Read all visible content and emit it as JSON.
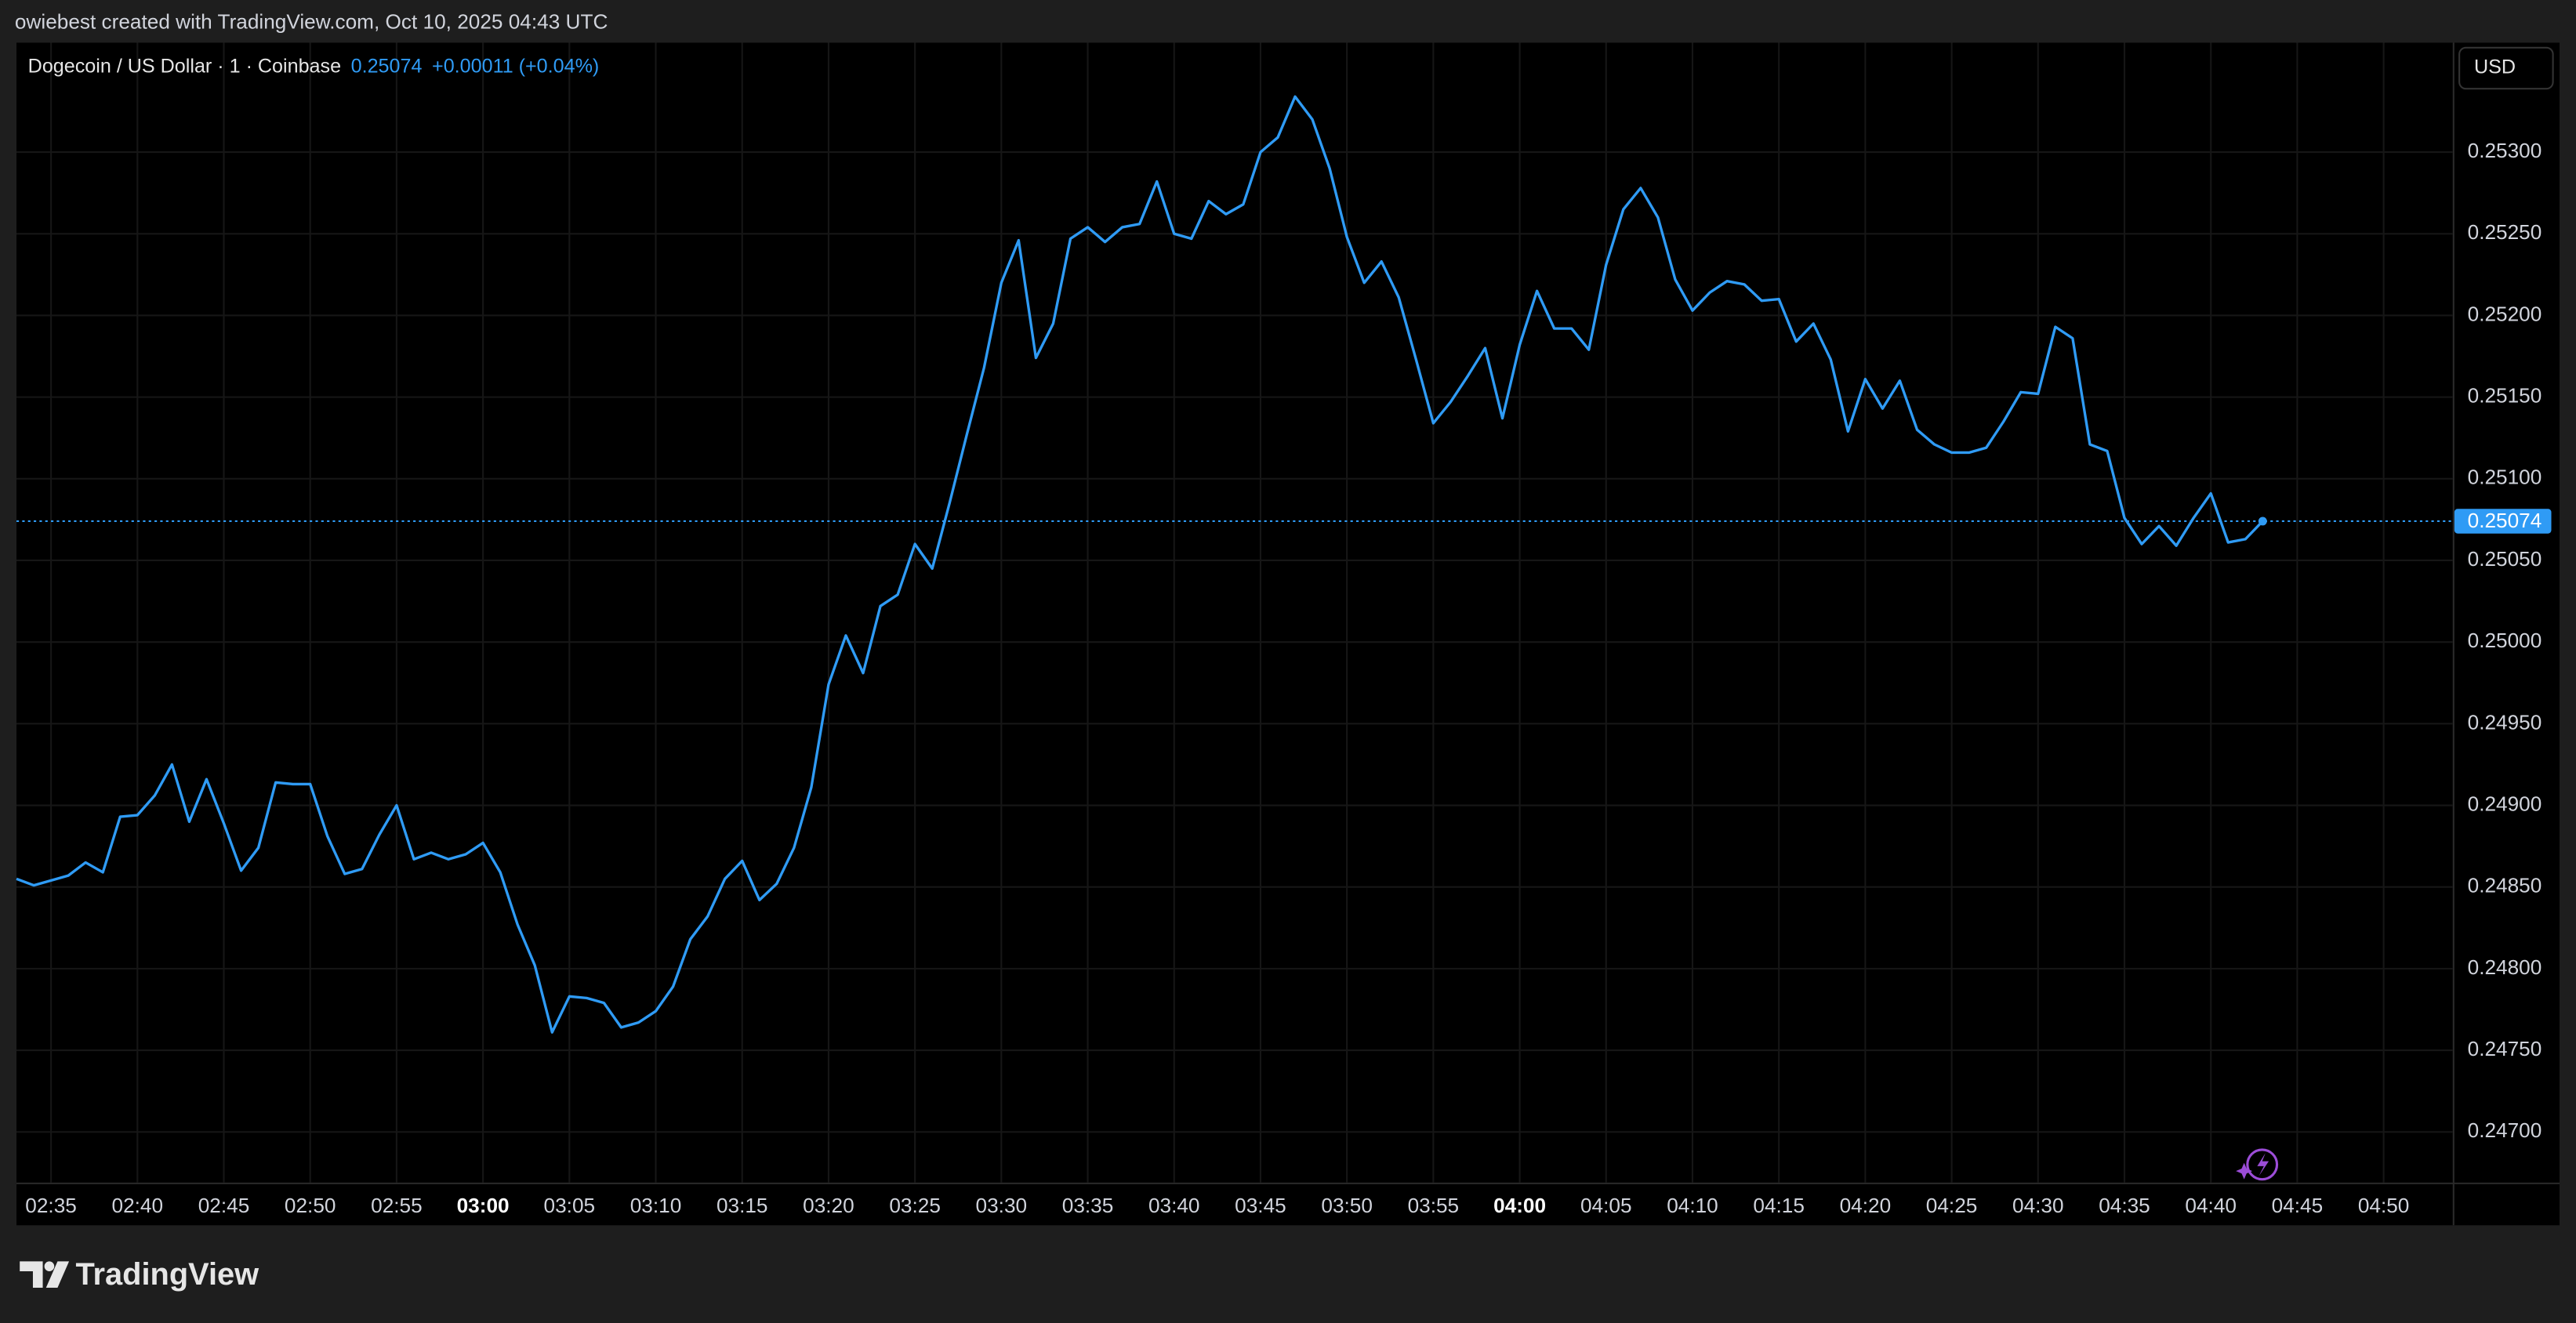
{
  "attribution": "owiebest created with TradingView.com, Oct 10, 2025 04:43 UTC",
  "brand": "TradingView",
  "chart_data": {
    "type": "line",
    "title": "Dogecoin / US Dollar · 1 · Coinbase",
    "last": 0.25074,
    "change": "+0.00011 (+0.04%)",
    "currency": "USD",
    "color": "#2f9bf5",
    "grid": true,
    "x": [
      "02:33",
      "02:34",
      "02:35",
      "02:36",
      "02:37",
      "02:38",
      "02:39",
      "02:40",
      "02:41",
      "02:42",
      "02:43",
      "02:44",
      "02:45",
      "02:46",
      "02:47",
      "02:48",
      "02:49",
      "02:50",
      "02:51",
      "02:52",
      "02:53",
      "02:54",
      "02:55",
      "02:56",
      "02:57",
      "02:58",
      "02:59",
      "03:00",
      "03:01",
      "03:02",
      "03:03",
      "03:04",
      "03:05",
      "03:06",
      "03:07",
      "03:08",
      "03:09",
      "03:10",
      "03:11",
      "03:12",
      "03:13",
      "03:14",
      "03:15",
      "03:16",
      "03:17",
      "03:18",
      "03:19",
      "03:20",
      "03:21",
      "03:22",
      "03:23",
      "03:24",
      "03:25",
      "03:26",
      "03:27",
      "03:28",
      "03:29",
      "03:30",
      "03:31",
      "03:32",
      "03:33",
      "03:34",
      "03:35",
      "03:36",
      "03:37",
      "03:38",
      "03:39",
      "03:40",
      "03:41",
      "03:42",
      "03:43",
      "03:44",
      "03:45",
      "03:46",
      "03:47",
      "03:48",
      "03:49",
      "03:50",
      "03:51",
      "03:52",
      "03:53",
      "03:54",
      "03:55",
      "03:56",
      "03:57",
      "03:58",
      "03:59",
      "04:00",
      "04:01",
      "04:02",
      "04:03",
      "04:04",
      "04:05",
      "04:06",
      "04:07",
      "04:08",
      "04:09",
      "04:10",
      "04:11",
      "04:12",
      "04:13",
      "04:14",
      "04:15",
      "04:16",
      "04:17",
      "04:18",
      "04:19",
      "04:20",
      "04:21",
      "04:22",
      "04:23",
      "04:24",
      "04:25",
      "04:26",
      "04:27",
      "04:28",
      "04:29",
      "04:30",
      "04:31",
      "04:32",
      "04:33",
      "04:34",
      "04:35",
      "04:36",
      "04:37",
      "04:38",
      "04:39",
      "04:40",
      "04:41",
      "04:42",
      "04:43"
    ],
    "values": [
      0.24855,
      0.24851,
      0.24854,
      0.24857,
      0.24865,
      0.24859,
      0.24893,
      0.24894,
      0.24906,
      0.24925,
      0.2489,
      0.24916,
      0.24889,
      0.2486,
      0.24874,
      0.24914,
      0.24913,
      0.24913,
      0.24881,
      0.24858,
      0.24861,
      0.24882,
      0.249,
      0.24867,
      0.24871,
      0.24867,
      0.2487,
      0.24877,
      0.24859,
      0.24827,
      0.24802,
      0.24761,
      0.24783,
      0.24782,
      0.24779,
      0.24764,
      0.24767,
      0.24774,
      0.24789,
      0.24818,
      0.24832,
      0.24855,
      0.24866,
      0.24842,
      0.24852,
      0.24874,
      0.24911,
      0.24974,
      0.25004,
      0.24981,
      0.25022,
      0.25029,
      0.2506,
      0.25045,
      0.25085,
      0.25127,
      0.25168,
      0.2522,
      0.25246,
      0.25174,
      0.25195,
      0.25247,
      0.25254,
      0.25245,
      0.25254,
      0.25256,
      0.25282,
      0.2525,
      0.25247,
      0.2527,
      0.25262,
      0.25268,
      0.253,
      0.25309,
      0.25334,
      0.2532,
      0.2529,
      0.25248,
      0.2522,
      0.25233,
      0.25211,
      0.25173,
      0.25134,
      0.25147,
      0.25163,
      0.2518,
      0.25137,
      0.25182,
      0.25215,
      0.25192,
      0.25192,
      0.25179,
      0.25231,
      0.25265,
      0.25278,
      0.2526,
      0.25222,
      0.25203,
      0.25214,
      0.25221,
      0.25219,
      0.25209,
      0.2521,
      0.25184,
      0.25195,
      0.25173,
      0.25129,
      0.25161,
      0.25143,
      0.2516,
      0.2513,
      0.25121,
      0.25116,
      0.25116,
      0.25119,
      0.25135,
      0.25153,
      0.25152,
      0.25193,
      0.25186,
      0.25121,
      0.25117,
      0.25076,
      0.2506,
      0.25071,
      0.25059,
      0.25076,
      0.25091,
      0.25061,
      0.25063,
      0.25074
    ],
    "xlim": [
      "02:33",
      "04:54"
    ],
    "xticks": [
      "02:35",
      "02:40",
      "02:45",
      "02:50",
      "02:55",
      "03:00",
      "03:05",
      "03:10",
      "03:15",
      "03:20",
      "03:25",
      "03:30",
      "03:35",
      "03:40",
      "03:45",
      "03:50",
      "03:55",
      "04:00",
      "04:05",
      "04:10",
      "04:15",
      "04:20",
      "04:25",
      "04:30",
      "04:35",
      "04:40",
      "04:45",
      "04:50"
    ],
    "ylim": [
      0.24669,
      0.25367
    ],
    "yticks": [
      {
        "value": 0.247,
        "label": "0.24700"
      },
      {
        "value": 0.2475,
        "label": "0.24750"
      },
      {
        "value": 0.248,
        "label": "0.24800"
      },
      {
        "value": 0.2485,
        "label": "0.24850"
      },
      {
        "value": 0.249,
        "label": "0.24900"
      },
      {
        "value": 0.2495,
        "label": "0.24950"
      },
      {
        "value": 0.25,
        "label": "0.25000"
      },
      {
        "value": 0.2505,
        "label": "0.25050"
      },
      {
        "value": 0.251,
        "label": "0.25100"
      },
      {
        "value": 0.2515,
        "label": "0.25150"
      },
      {
        "value": 0.252,
        "label": "0.25200"
      },
      {
        "value": 0.2525,
        "label": "0.25250"
      },
      {
        "value": 0.253,
        "label": "0.25300"
      }
    ]
  }
}
